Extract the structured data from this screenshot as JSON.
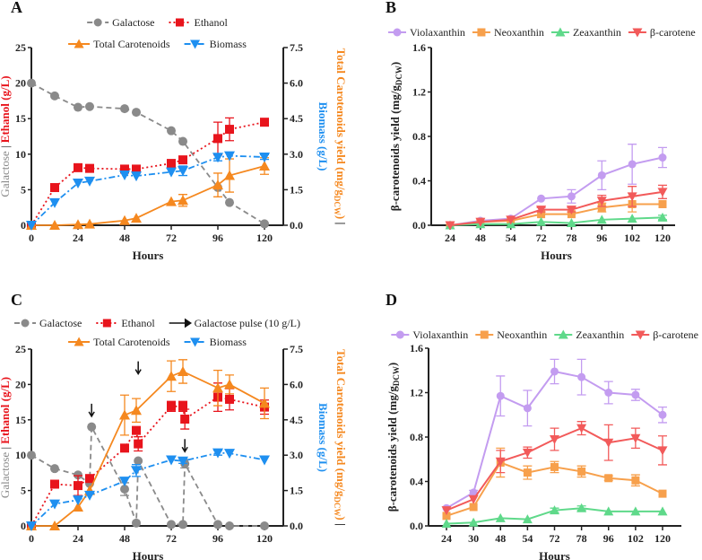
{
  "colors": {
    "Galactose": "#8a8a8a",
    "Ethanol": "#e8141c",
    "Total Carotenoids": "#f5881f",
    "Biomass": "#1e8ff0",
    "Violaxanthin": "#c39cf0",
    "Neoxanthin": "#f7a04c",
    "Zeaxanthin": "#5fd98a",
    "β-carotene": "#f25a5a",
    "axis": "#222222"
  },
  "chart_data": [
    {
      "panel": "A",
      "type": "line",
      "xlabel": "Hours",
      "ylabel_parts": [
        "Galactose",
        " | ",
        "Ethanol (g/L)"
      ],
      "y2label_parts": [
        "Biomass (g/L)",
        "Total Carotenoids yield (mg/g",
        "DCW",
        ")",
        " |"
      ],
      "xlim": [
        0,
        120
      ],
      "xticks": [
        0,
        24,
        48,
        72,
        96,
        120
      ],
      "ylim": [
        0,
        25
      ],
      "yticks": [
        0,
        5,
        10,
        15,
        20,
        25
      ],
      "y2lim": [
        0,
        7.5
      ],
      "y2ticks": [
        "0.0",
        "1.5",
        "3.0",
        "4.5",
        "6.0",
        "7.5"
      ],
      "legend": [
        "Galactose",
        "Ethanol",
        "Total Carotenoids",
        "Biomass"
      ],
      "series": [
        {
          "name": "Galactose",
          "axis": "left",
          "marker": "circle",
          "dash": "6,4",
          "x": [
            0,
            12,
            24,
            30,
            48,
            54,
            72,
            78,
            96,
            102,
            120
          ],
          "y": [
            20,
            18.2,
            16.6,
            16.7,
            16.4,
            15.9,
            13.3,
            11.8,
            5.3,
            3.2,
            0.2
          ]
        },
        {
          "name": "Ethanol",
          "axis": "left",
          "marker": "square",
          "dash": "2,3",
          "x": [
            0,
            12,
            24,
            30,
            48,
            54,
            72,
            78,
            96,
            102,
            120
          ],
          "y": [
            0,
            5.3,
            8.1,
            8.0,
            7.9,
            7.9,
            8.7,
            9.2,
            12.2,
            13.5,
            14.5
          ],
          "err": [
            0,
            0,
            0,
            0,
            0,
            0,
            0,
            0,
            2.3,
            1.6,
            0
          ]
        },
        {
          "name": "Total Carotenoids",
          "axis": "right",
          "marker": "triangle-up",
          "dash": "",
          "x": [
            0,
            12,
            24,
            30,
            48,
            54,
            72,
            78,
            96,
            102,
            120
          ],
          "y": [
            0,
            0,
            0.03,
            0.05,
            0.2,
            0.3,
            1.0,
            1.05,
            1.7,
            2.1,
            2.5
          ],
          "err": [
            0,
            0,
            0,
            0,
            0,
            0,
            0,
            0.25,
            0.5,
            0.7,
            0.35
          ]
        },
        {
          "name": "Biomass",
          "axis": "right",
          "marker": "triangle-down",
          "dash": "7,3,2,3",
          "x": [
            0,
            12,
            24,
            30,
            48,
            54,
            72,
            78,
            96,
            102,
            120
          ],
          "y": [
            0,
            0.95,
            1.78,
            1.86,
            2.12,
            2.08,
            2.25,
            2.3,
            2.87,
            2.93,
            2.88
          ],
          "err": [
            0,
            0,
            0,
            0,
            0,
            0,
            0,
            0.2,
            0.15,
            0,
            0.1
          ]
        }
      ]
    },
    {
      "panel": "B",
      "type": "line",
      "xlabel": "Hours",
      "ylabel_parts": [
        "β-carotenoids yield (mg/g",
        "DCW",
        ")"
      ],
      "categories": [
        "24",
        "48",
        "54",
        "72",
        "78",
        "96",
        "102",
        "120"
      ],
      "ylim": [
        0,
        1.6
      ],
      "yticks": [
        "0.0",
        "0.4",
        "0.8",
        "1.2",
        "1.6"
      ],
      "legend": [
        "Violaxanthin",
        "Neoxanthin",
        "Zeaxanthin",
        "β-carotene"
      ],
      "series": [
        {
          "name": "Violaxanthin",
          "marker": "circle",
          "y": [
            0,
            0.04,
            0.06,
            0.24,
            0.26,
            0.45,
            0.55,
            0.61
          ],
          "err": [
            0,
            0,
            0,
            0,
            0.06,
            0.13,
            0.18,
            0.09
          ]
        },
        {
          "name": "Neoxanthin",
          "marker": "square",
          "y": [
            0,
            0.03,
            0.04,
            0.1,
            0.1,
            0.16,
            0.19,
            0.19
          ],
          "err": [
            0,
            0,
            0,
            0,
            0,
            0.04,
            0.07,
            0
          ]
        },
        {
          "name": "Zeaxanthin",
          "marker": "triangle-up",
          "y": [
            0,
            0.01,
            0.01,
            0.03,
            0.02,
            0.05,
            0.06,
            0.07
          ],
          "err": [
            0,
            0,
            0,
            0,
            0,
            0,
            0,
            0.02
          ]
        },
        {
          "name": "β-carotene",
          "marker": "triangle-down",
          "y": [
            0,
            0.03,
            0.05,
            0.14,
            0.14,
            0.22,
            0.26,
            0.3
          ],
          "err": [
            0,
            0,
            0,
            0.02,
            0.02,
            0.05,
            0.09,
            0.06
          ]
        }
      ]
    },
    {
      "panel": "C",
      "type": "line",
      "xlabel": "Hours",
      "ylabel_parts": [
        "Galactose",
        " | ",
        "Ethanol (g/L)"
      ],
      "y2label_parts": [
        "Biomass (g/L)",
        "Total Carotenoids yield (mg/g",
        "DCW",
        ")",
        " |"
      ],
      "xlim": [
        0,
        120
      ],
      "xticks": [
        0,
        24,
        48,
        72,
        96,
        120
      ],
      "ylim": [
        0,
        25
      ],
      "yticks": [
        0,
        5,
        10,
        15,
        20,
        25
      ],
      "y2lim": [
        0,
        7.5
      ],
      "y2ticks": [
        "0.0",
        "1.5",
        "3.0",
        "4.5",
        "6.0",
        "7.5"
      ],
      "legend": [
        "Galactose",
        "Ethanol",
        "Galactose pulse (10 g/L)",
        "Total Carotenoids",
        "Biomass"
      ],
      "pulses": [
        {
          "x": 31,
          "y": 15.5
        },
        {
          "x": 55,
          "y": 21.5
        },
        {
          "x": 79,
          "y": 10.5
        }
      ],
      "series": [
        {
          "name": "Galactose",
          "axis": "left",
          "marker": "circle",
          "dash": "6,4",
          "x": [
            0,
            12,
            24,
            30,
            31,
            48,
            54,
            55,
            72,
            78,
            79,
            96,
            102,
            120
          ],
          "y": [
            10,
            8.1,
            7.2,
            6.0,
            14.0,
            5.2,
            0.4,
            9.2,
            0.2,
            0.2,
            8.8,
            0.2,
            0,
            0
          ],
          "err": [
            0,
            0,
            0,
            0,
            0,
            0.9,
            0,
            0,
            0,
            0,
            0.6,
            0,
            0,
            0
          ]
        },
        {
          "name": "Ethanol",
          "axis": "left",
          "marker": "square",
          "dash": "2,3",
          "x": [
            0,
            12,
            24,
            30,
            48,
            54,
            55,
            72,
            78,
            79,
            96,
            102,
            120
          ],
          "y": [
            0,
            5.9,
            5.7,
            6.7,
            11.0,
            13.5,
            11.6,
            16.9,
            16.9,
            15.1,
            18.2,
            17.9,
            16.8
          ],
          "err": [
            0,
            0,
            1.4,
            0,
            0,
            0,
            1.0,
            0.7,
            0.7,
            1.4,
            2.0,
            1.5,
            1.0
          ]
        },
        {
          "name": "Total Carotenoids",
          "axis": "right",
          "marker": "triangle-up",
          "dash": "",
          "x": [
            0,
            12,
            24,
            30,
            48,
            54,
            72,
            78,
            96,
            102,
            120
          ],
          "y": [
            0,
            0,
            0.8,
            1.5,
            4.7,
            4.9,
            6.35,
            6.55,
            5.85,
            6.0,
            5.2
          ],
          "err": [
            0,
            0,
            0,
            0,
            0.85,
            0.5,
            0.65,
            0.5,
            0.75,
            0.4,
            0.65
          ]
        },
        {
          "name": "Biomass",
          "axis": "right",
          "marker": "triangle-down",
          "dash": "7,3,2,3",
          "x": [
            0,
            12,
            24,
            30,
            48,
            54,
            72,
            78,
            96,
            102,
            120
          ],
          "y": [
            0,
            0.93,
            1.1,
            1.3,
            1.9,
            2.35,
            2.8,
            2.75,
            3.1,
            3.08,
            2.8
          ],
          "err": [
            0,
            0,
            0,
            0,
            0,
            0.25,
            0,
            0.1,
            0.1,
            0,
            0
          ]
        }
      ]
    },
    {
      "panel": "D",
      "type": "line",
      "xlabel": "Hours",
      "ylabel_parts": [
        "β-carotenoids yield (mg/g",
        "DCW",
        ")"
      ],
      "categories": [
        "24",
        "30",
        "48",
        "54",
        "72",
        "78",
        "96",
        "102",
        "120"
      ],
      "ylim": [
        0,
        1.6
      ],
      "yticks": [
        "0.0",
        "0.4",
        "0.8",
        "1.2",
        "1.6"
      ],
      "legend": [
        "Violaxanthin",
        "Neoxanthin",
        "Zeaxanthin",
        "β-carotene"
      ],
      "series": [
        {
          "name": "Violaxanthin",
          "marker": "circle",
          "y": [
            0.16,
            0.3,
            1.17,
            1.06,
            1.39,
            1.34,
            1.2,
            1.18,
            1.0
          ],
          "err": [
            0,
            0.02,
            0.18,
            0.16,
            0.11,
            0.16,
            0.1,
            0.05,
            0.07
          ]
        },
        {
          "name": "Neoxanthin",
          "marker": "square",
          "y": [
            0.09,
            0.17,
            0.57,
            0.48,
            0.53,
            0.49,
            0.43,
            0.41,
            0.29
          ],
          "err": [
            0,
            0,
            0.13,
            0.06,
            0.05,
            0.05,
            0.02,
            0.05,
            0
          ]
        },
        {
          "name": "Zeaxanthin",
          "marker": "triangle-up",
          "y": [
            0.02,
            0.03,
            0.07,
            0.06,
            0.14,
            0.16,
            0.13,
            0.13,
            0.13
          ],
          "err": [
            0,
            0,
            0,
            0,
            0.02,
            0.02,
            0,
            0,
            0
          ]
        },
        {
          "name": "β-carotene",
          "marker": "triangle-down",
          "y": [
            0.14,
            0.24,
            0.58,
            0.66,
            0.78,
            0.88,
            0.75,
            0.79,
            0.68
          ],
          "err": [
            0,
            0,
            0.1,
            0.05,
            0.1,
            0.06,
            0.16,
            0.09,
            0.13
          ]
        }
      ]
    }
  ]
}
